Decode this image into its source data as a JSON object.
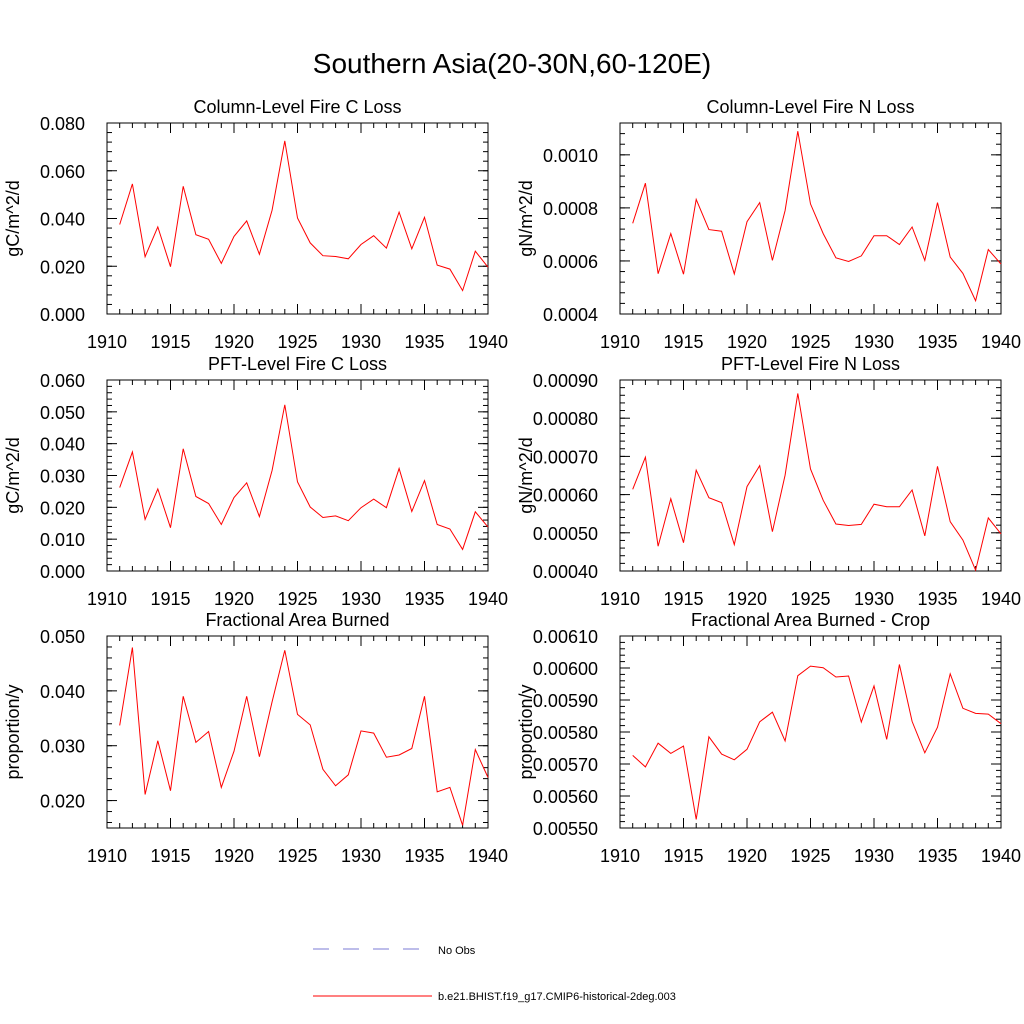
{
  "figure": {
    "title": "Southern Asia(20-30N,60-120E)",
    "legend": [
      {
        "label": "No Obs",
        "style": "dashed",
        "color": "#7b7bd6"
      },
      {
        "label": "b.e21.BHIST.f19_g17.CMIP6-historical-2deg.003",
        "style": "solid",
        "color": "#ff0000"
      }
    ]
  },
  "chart_data": [
    {
      "type": "line",
      "title": "Column-Level Fire C Loss",
      "ylabel": "gC/m^2/d",
      "xlim": [
        1910,
        1940
      ],
      "ylim": [
        0.0,
        0.08
      ],
      "yticks": [
        0.0,
        0.02,
        0.04,
        0.06,
        0.08
      ],
      "ytick_labels": [
        "0.000",
        "0.020",
        "0.040",
        "0.060",
        "0.080"
      ],
      "xticks": [
        1910,
        1915,
        1920,
        1925,
        1930,
        1935,
        1940
      ],
      "x": [
        1911,
        1912,
        1913,
        1914,
        1915,
        1916,
        1917,
        1918,
        1919,
        1920,
        1921,
        1922,
        1923,
        1924,
        1925,
        1926,
        1927,
        1928,
        1929,
        1930,
        1931,
        1932,
        1933,
        1934,
        1935,
        1936,
        1937,
        1938,
        1939,
        1940
      ],
      "series": [
        {
          "color": "#ff0000",
          "values": [
            0.0375,
            0.0545,
            0.024,
            0.0365,
            0.0198,
            0.0535,
            0.0332,
            0.0313,
            0.0212,
            0.0325,
            0.039,
            0.025,
            0.0435,
            0.0725,
            0.0402,
            0.0298,
            0.0244,
            0.0241,
            0.0231,
            0.0291,
            0.0328,
            0.0276,
            0.0427,
            0.0273,
            0.0405,
            0.0205,
            0.0188,
            0.0098,
            0.0263,
            0.0196
          ]
        }
      ]
    },
    {
      "type": "line",
      "title": "Column-Level Fire N Loss",
      "ylabel": "gN/m^2/d",
      "xlim": [
        1910,
        1940
      ],
      "ylim": [
        0.0004,
        0.00112
      ],
      "yticks": [
        0.0004,
        0.0006,
        0.0008,
        0.001
      ],
      "ytick_labels": [
        "0.0004",
        "0.0006",
        "0.0008",
        "0.0010"
      ],
      "xticks": [
        1910,
        1915,
        1920,
        1925,
        1930,
        1935,
        1940
      ],
      "x": [
        1911,
        1912,
        1913,
        1914,
        1915,
        1916,
        1917,
        1918,
        1919,
        1920,
        1921,
        1922,
        1923,
        1924,
        1925,
        1926,
        1927,
        1928,
        1929,
        1930,
        1931,
        1932,
        1933,
        1934,
        1935,
        1936,
        1937,
        1938,
        1939,
        1940
      ],
      "series": [
        {
          "color": "#ff0000",
          "values": [
            0.000742,
            0.000893,
            0.000552,
            0.000703,
            0.00055,
            0.000832,
            0.000718,
            0.000712,
            0.000551,
            0.000748,
            0.00082,
            0.000602,
            0.00079,
            0.001089,
            0.000815,
            0.000703,
            0.000612,
            0.000598,
            0.000619,
            0.000695,
            0.000695,
            0.000662,
            0.000728,
            0.000602,
            0.00082,
            0.000615,
            0.000553,
            0.00045,
            0.000643,
            0.000588
          ]
        }
      ]
    },
    {
      "type": "line",
      "title": "PFT-Level Fire C Loss",
      "ylabel": "gC/m^2/d",
      "xlim": [
        1910,
        1940
      ],
      "ylim": [
        0.0,
        0.06
      ],
      "yticks": [
        0.0,
        0.01,
        0.02,
        0.03,
        0.04,
        0.05,
        0.06
      ],
      "ytick_labels": [
        "0.000",
        "0.010",
        "0.020",
        "0.030",
        "0.040",
        "0.050",
        "0.060"
      ],
      "xticks": [
        1910,
        1915,
        1920,
        1925,
        1930,
        1935,
        1940
      ],
      "x": [
        1911,
        1912,
        1913,
        1914,
        1915,
        1916,
        1917,
        1918,
        1919,
        1920,
        1921,
        1922,
        1923,
        1924,
        1925,
        1926,
        1927,
        1928,
        1929,
        1930,
        1931,
        1932,
        1933,
        1934,
        1935,
        1936,
        1937,
        1938,
        1939,
        1940
      ],
      "series": [
        {
          "color": "#ff0000",
          "values": [
            0.0262,
            0.0374,
            0.0162,
            0.0258,
            0.0136,
            0.0384,
            0.0234,
            0.0212,
            0.0146,
            0.0231,
            0.0277,
            0.0171,
            0.0316,
            0.0522,
            0.028,
            0.0201,
            0.0168,
            0.0173,
            0.0158,
            0.0199,
            0.0226,
            0.0199,
            0.0322,
            0.0187,
            0.0284,
            0.0146,
            0.0132,
            0.0068,
            0.0186,
            0.0138
          ]
        }
      ]
    },
    {
      "type": "line",
      "title": "PFT-Level Fire N Loss",
      "ylabel": "gN/m^2/d",
      "xlim": [
        1910,
        1940
      ],
      "ylim": [
        0.0004,
        0.0009
      ],
      "yticks": [
        0.0004,
        0.0005,
        0.0006,
        0.0007,
        0.0008,
        0.0009
      ],
      "ytick_labels": [
        "0.00040",
        "0.00050",
        "0.00060",
        "0.00070",
        "0.00080",
        "0.00090"
      ],
      "xticks": [
        1910,
        1915,
        1920,
        1925,
        1930,
        1935,
        1940
      ],
      "x": [
        1911,
        1912,
        1913,
        1914,
        1915,
        1916,
        1917,
        1918,
        1919,
        1920,
        1921,
        1922,
        1923,
        1924,
        1925,
        1926,
        1927,
        1928,
        1929,
        1930,
        1931,
        1932,
        1933,
        1934,
        1935,
        1936,
        1937,
        1938,
        1939,
        1940
      ],
      "series": [
        {
          "color": "#ff0000",
          "values": [
            0.000614,
            0.000698,
            0.000465,
            0.000589,
            0.000474,
            0.000664,
            0.000592,
            0.000579,
            0.000469,
            0.000621,
            0.000676,
            0.000503,
            0.000651,
            0.000865,
            0.000667,
            0.000585,
            0.000523,
            0.000519,
            0.000522,
            0.000575,
            0.000568,
            0.000568,
            0.000612,
            0.000492,
            0.000674,
            0.000529,
            0.000481,
            0.000402,
            0.000539,
            0.000497
          ]
        }
      ]
    },
    {
      "type": "line",
      "title": "Fractional Area Burned",
      "ylabel": "proportion/y",
      "xlim": [
        1910,
        1940
      ],
      "ylim": [
        0.015,
        0.05
      ],
      "yticks": [
        0.02,
        0.03,
        0.04,
        0.05
      ],
      "ytick_labels": [
        "0.020",
        "0.030",
        "0.040",
        "0.050"
      ],
      "xticks": [
        1910,
        1915,
        1920,
        1925,
        1930,
        1935,
        1940
      ],
      "x": [
        1911,
        1912,
        1913,
        1914,
        1915,
        1916,
        1917,
        1918,
        1919,
        1920,
        1921,
        1922,
        1923,
        1924,
        1925,
        1926,
        1927,
        1928,
        1929,
        1930,
        1931,
        1932,
        1933,
        1934,
        1935,
        1936,
        1937,
        1938,
        1939,
        1940
      ],
      "series": [
        {
          "color": "#ff0000",
          "values": [
            0.0337,
            0.0479,
            0.0211,
            0.0309,
            0.0218,
            0.039,
            0.0306,
            0.0326,
            0.0224,
            0.029,
            0.039,
            0.028,
            0.038,
            0.0474,
            0.0357,
            0.0338,
            0.0257,
            0.0227,
            0.0247,
            0.0327,
            0.0323,
            0.0279,
            0.0283,
            0.0295,
            0.039,
            0.0216,
            0.0224,
            0.0155,
            0.0293,
            0.0242
          ]
        }
      ]
    },
    {
      "type": "line",
      "title": "Fractional Area Burned - Crop",
      "ylabel": "proportion/y",
      "xlim": [
        1910,
        1940
      ],
      "ylim": [
        0.0055,
        0.0061
      ],
      "yticks": [
        0.0055,
        0.0056,
        0.0057,
        0.0058,
        0.0059,
        0.006,
        0.0061
      ],
      "ytick_labels": [
        "0.00550",
        "0.00560",
        "0.00570",
        "0.00580",
        "0.00590",
        "0.00600",
        "0.00610"
      ],
      "xticks": [
        1910,
        1915,
        1920,
        1925,
        1930,
        1935,
        1940
      ],
      "x": [
        1911,
        1912,
        1913,
        1914,
        1915,
        1916,
        1917,
        1918,
        1919,
        1920,
        1921,
        1922,
        1923,
        1924,
        1925,
        1926,
        1927,
        1928,
        1929,
        1930,
        1931,
        1932,
        1933,
        1934,
        1935,
        1936,
        1937,
        1938,
        1939,
        1940
      ],
      "series": [
        {
          "color": "#ff0000",
          "values": [
            0.005727,
            0.005691,
            0.005765,
            0.005733,
            0.005756,
            0.005527,
            0.005785,
            0.005731,
            0.005713,
            0.005746,
            0.005832,
            0.005862,
            0.005772,
            0.005976,
            0.006006,
            0.006001,
            0.005972,
            0.005975,
            0.005831,
            0.005944,
            0.005777,
            0.006011,
            0.005833,
            0.005735,
            0.005815,
            0.005982,
            0.005874,
            0.005858,
            0.005856,
            0.005826
          ]
        }
      ]
    }
  ]
}
